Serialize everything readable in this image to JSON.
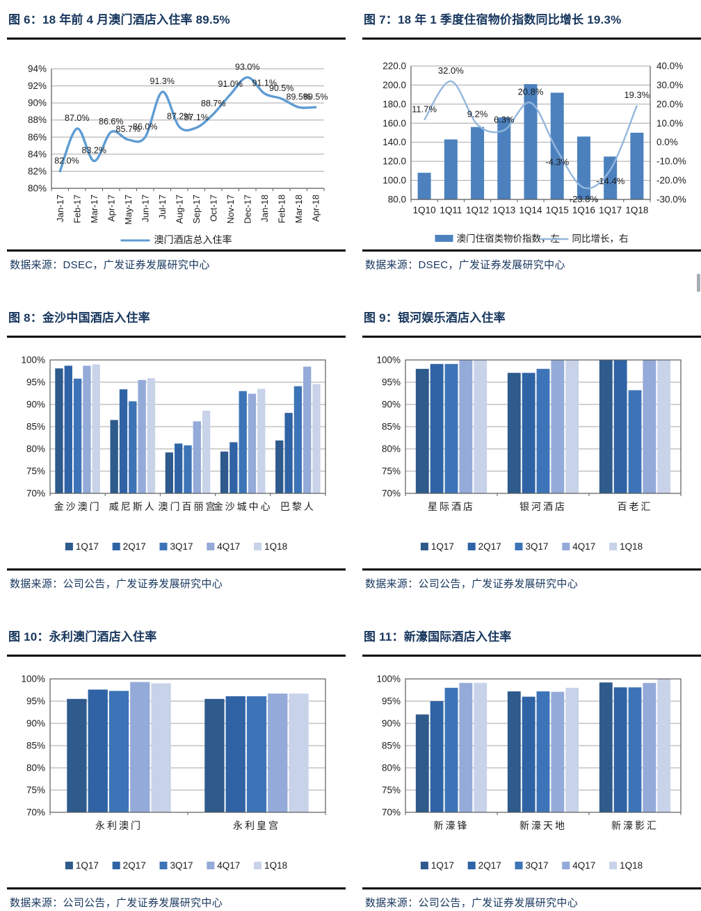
{
  "palette": {
    "title_navy": "#17365D",
    "grid_gray": "#A6A6A6",
    "axis_gray": "#595959",
    "label_black": "#1A1A1A",
    "series_colors": [
      "#2E5A8C",
      "#2F63A5",
      "#3D74B8",
      "#94AAD8",
      "#C8D3EA"
    ],
    "fig6_line": "#5E9CD3",
    "fig7_bar": "#4C81BE",
    "fig7_line": "#93B7DD"
  },
  "chart_data": [
    {
      "type": "line",
      "title": "图 6：18 年前 4 月澳门酒店入住率 89.5%",
      "source": "数据来源：DSEC，广发证券发展研究中心",
      "x": [
        "Jan-17",
        "Feb-17",
        "Mar-17",
        "Apr-17",
        "May-17",
        "Jun-17",
        "Jul-17",
        "Aug-17",
        "Sep-17",
        "Oct-17",
        "Nov-17",
        "Dec-17",
        "Jan-18",
        "Feb-18",
        "Mar-18",
        "Apr-18"
      ],
      "series": [
        {
          "name": "澳门酒店总入住率",
          "values": [
            82.0,
            87.0,
            83.2,
            86.6,
            85.7,
            86.0,
            91.3,
            87.2,
            87.1,
            88.7,
            91.0,
            93.0,
            91.1,
            90.5,
            89.5,
            89.5
          ]
        }
      ],
      "ylim": [
        80,
        94
      ],
      "ytick_step": 2,
      "ytick_suffix": "%",
      "data_labels": true,
      "grid": true,
      "legend_position": "bottom",
      "smooth": true
    },
    {
      "type": "combo",
      "title": "图 7：18 年 1 季度住宿物价指数同比增长 19.3%",
      "source": "数据来源：DSEC，广发证券发展研究中心",
      "categories": [
        "1Q10",
        "1Q11",
        "1Q12",
        "1Q13",
        "1Q14",
        "1Q15",
        "1Q16",
        "1Q17",
        "1Q18"
      ],
      "bar_series": {
        "name": "澳门住宿类物价指数，左",
        "values": [
          108,
          143,
          156,
          166,
          201,
          192,
          146,
          125,
          150
        ]
      },
      "line_series": {
        "name": "同比增长，右",
        "values": [
          11.7,
          32.0,
          9.2,
          6.3,
          20.8,
          -4.3,
          -23.8,
          -14.4,
          19.3
        ]
      },
      "ylim_left": [
        80,
        220
      ],
      "ytick_step_left": 20,
      "ylim_right": [
        -30,
        40
      ],
      "ytick_step_right": 10,
      "ytick_suffix_right": "%",
      "data_labels": true,
      "grid": true,
      "legend_position": "bottom",
      "smooth": true
    },
    {
      "type": "bar",
      "title": "图 8：金沙中国酒店入住率",
      "source": "数据来源：公司公告，广发证券发展研究中心",
      "categories": [
        "金沙澳门",
        "威尼斯人",
        "澳门百丽宫",
        "金沙城中心",
        "巴黎人"
      ],
      "series": [
        {
          "name": "1Q17",
          "values": [
            98.1,
            86.5,
            79.2,
            79.4,
            81.9
          ]
        },
        {
          "name": "2Q17",
          "values": [
            98.7,
            93.4,
            81.2,
            81.5,
            88.1
          ]
        },
        {
          "name": "3Q17",
          "values": [
            95.8,
            90.7,
            80.8,
            93.0,
            94.1
          ]
        },
        {
          "name": "4Q17",
          "values": [
            98.7,
            95.5,
            86.2,
            92.4,
            98.5
          ]
        },
        {
          "name": "1Q18",
          "values": [
            99.0,
            95.9,
            88.6,
            93.5,
            94.6
          ]
        }
      ],
      "ylim": [
        70,
        100
      ],
      "ytick_step": 5,
      "ytick_suffix": "%",
      "grid": true,
      "legend_position": "bottom"
    },
    {
      "type": "bar",
      "title": "图 9：银河娱乐酒店入住率",
      "source": "数据来源：公司公告，广发证券发展研究中心",
      "categories": [
        "星际酒店",
        "银河酒店",
        "百老汇"
      ],
      "series": [
        {
          "name": "1Q17",
          "values": [
            98.0,
            97.1,
            100
          ]
        },
        {
          "name": "2Q17",
          "values": [
            99.1,
            97.1,
            100
          ]
        },
        {
          "name": "3Q17",
          "values": [
            99.1,
            98.0,
            93.2
          ]
        },
        {
          "name": "4Q17",
          "values": [
            100,
            100,
            100
          ]
        },
        {
          "name": "1Q18",
          "values": [
            100,
            100,
            100
          ]
        }
      ],
      "ylim": [
        70,
        100
      ],
      "ytick_step": 5,
      "ytick_suffix": "%",
      "grid": true,
      "legend_position": "bottom"
    },
    {
      "type": "bar",
      "title": "图 10：永利澳门酒店入住率",
      "source": "数据来源：公司公告，广发证券发展研究中心",
      "categories": [
        "永利澳门",
        "永利皇宫"
      ],
      "series": [
        {
          "name": "1Q17",
          "values": [
            95.5,
            95.5
          ]
        },
        {
          "name": "2Q17",
          "values": [
            97.6,
            96.1
          ]
        },
        {
          "name": "3Q17",
          "values": [
            97.3,
            96.1
          ]
        },
        {
          "name": "4Q17",
          "values": [
            99.3,
            96.7
          ]
        },
        {
          "name": "1Q18",
          "values": [
            99.0,
            96.7
          ]
        }
      ],
      "ylim": [
        70,
        100
      ],
      "ytick_step": 5,
      "ytick_suffix": "%",
      "grid": true,
      "legend_position": "bottom"
    },
    {
      "type": "bar",
      "title": "图 11：新濠国际酒店入住率",
      "source": "数据来源：公司公告，广发证券发展研究中心",
      "categories": [
        "新濠锋",
        "新濠天地",
        "新濠影汇"
      ],
      "series": [
        {
          "name": "1Q17",
          "values": [
            92.0,
            97.2,
            99.2
          ]
        },
        {
          "name": "2Q17",
          "values": [
            95.0,
            96.0,
            98.1
          ]
        },
        {
          "name": "3Q17",
          "values": [
            98.0,
            97.2,
            98.1
          ]
        },
        {
          "name": "4Q17",
          "values": [
            99.1,
            97.1,
            99.1
          ]
        },
        {
          "name": "1Q18",
          "values": [
            99.1,
            98.0,
            100
          ]
        }
      ],
      "ylim": [
        70,
        100
      ],
      "ytick_step": 5,
      "ytick_suffix": "%",
      "grid": true,
      "legend_position": "bottom"
    }
  ]
}
